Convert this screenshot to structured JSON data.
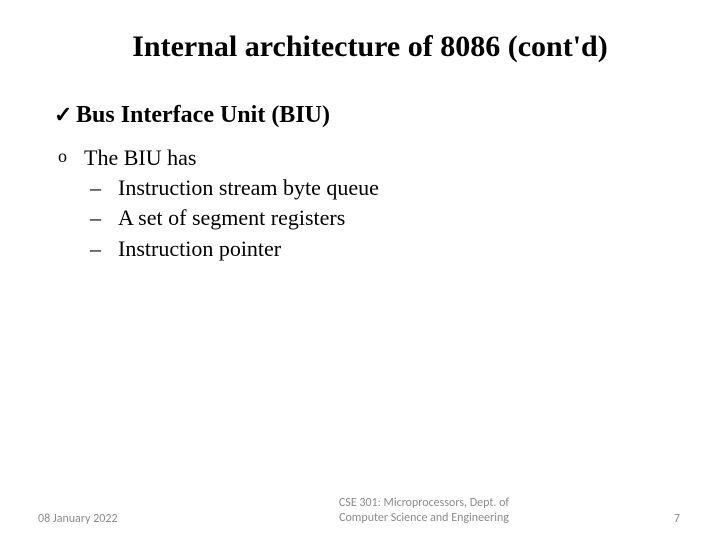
{
  "title": "Internal architecture of 8086 (cont'd)",
  "section": {
    "heading": "Bus Interface Unit (BIU)",
    "intro": "The BIU has",
    "items": [
      "Instruction stream byte queue",
      "A set of segment registers",
      "Instruction pointer"
    ]
  },
  "footer": {
    "date": "08 January 2022",
    "center_line1": "CSE 301: Microprocessors, Dept. of",
    "center_line2": "Computer Science and Engineering",
    "page": "7"
  },
  "colors": {
    "background": "#ffffff",
    "text": "#000000",
    "footer_text": "#8b8b8b"
  },
  "fonts": {
    "body": "Times New Roman",
    "footer": "Calibri"
  }
}
